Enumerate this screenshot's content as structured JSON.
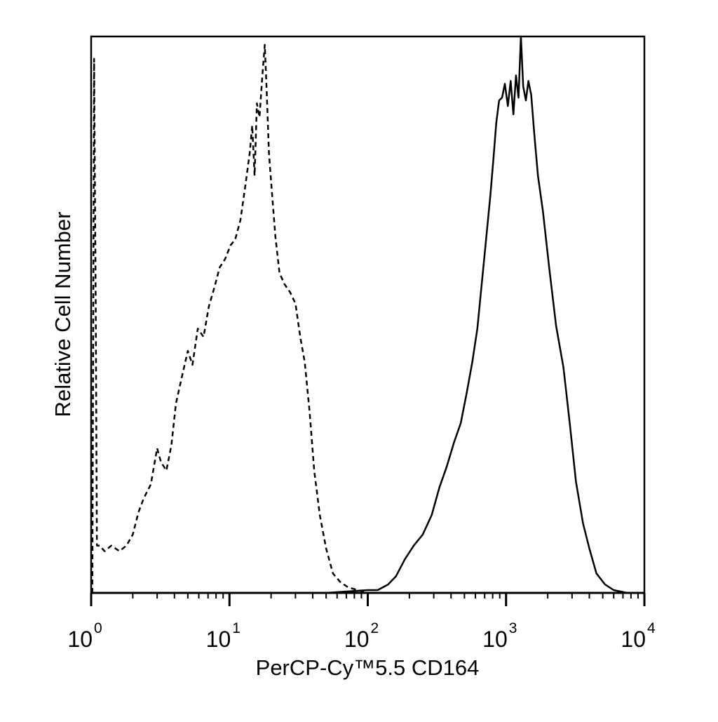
{
  "chart_data": {
    "type": "line",
    "title": "",
    "xlabel": "PerCP-Cy™5.5 CD164",
    "ylabel": "Relative Cell Number",
    "x_scale": "log",
    "xlim": [
      1,
      10000
    ],
    "ylim": [
      0,
      100
    ],
    "y_ticks_labeled": false,
    "grid": false,
    "legend": "none",
    "x_ticks": [
      {
        "value": 1,
        "base": "10",
        "exp": "0"
      },
      {
        "value": 10,
        "base": "10",
        "exp": "1"
      },
      {
        "value": 100,
        "base": "10",
        "exp": "2"
      },
      {
        "value": 1000,
        "base": "10",
        "exp": "3"
      },
      {
        "value": 10000,
        "base": "10",
        "exp": "4"
      }
    ],
    "series": [
      {
        "style": "dashed",
        "color": "#000000",
        "x": [
          1.02,
          1.05,
          1.08,
          1.1,
          1.15,
          1.25,
          1.4,
          1.6,
          1.8,
          2.0,
          2.2,
          2.4,
          2.7,
          3.0,
          3.2,
          3.5,
          3.8,
          4.1,
          4.5,
          5.0,
          5.4,
          5.9,
          6.5,
          7.1,
          7.8,
          8.5,
          9.3,
          10.2,
          11.0,
          12.0,
          13.0,
          14.0,
          14.6,
          15.2,
          15.8,
          16.5,
          17.3,
          18.0,
          18.6,
          19.3,
          20.2,
          21.5,
          23.0,
          25.0,
          27.5,
          30.0,
          32.5,
          35.0,
          38.0,
          41.0,
          45.0,
          50.0,
          56.0,
          63.0,
          72.0,
          85.0,
          100.0,
          150.0,
          300.0,
          1000.0,
          5000.0,
          10000.0
        ],
        "y": [
          0,
          96,
          50,
          8.5,
          8.5,
          7.5,
          8.5,
          7.5,
          8.5,
          10.5,
          14.5,
          17,
          19.5,
          26,
          23.5,
          22,
          26.5,
          34,
          38.5,
          43.5,
          41,
          47.5,
          46,
          51.5,
          55,
          58.5,
          60,
          62.5,
          63.5,
          67,
          73,
          79,
          84,
          75,
          88,
          85.5,
          93,
          98.5,
          90,
          79,
          72.5,
          64,
          57.5,
          55.5,
          54,
          52,
          46,
          41.5,
          32.5,
          22,
          14,
          8,
          3.5,
          2,
          1,
          0.5,
          0,
          0,
          0,
          0,
          0,
          0
        ]
      },
      {
        "style": "solid",
        "color": "#000000",
        "x": [
          1.0,
          50.0,
          100.0,
          118.0,
          140.0,
          160.0,
          185.0,
          215.0,
          250.0,
          290.0,
          330.0,
          370.0,
          420.0,
          470.0,
          520.0,
          570.0,
          620.0,
          670.0,
          720.0,
          770.0,
          810.0,
          850.0,
          890.0,
          935.0,
          980.0,
          1030.0,
          1080.0,
          1130.0,
          1180.0,
          1230.0,
          1280.0,
          1330.0,
          1390.0,
          1450.0,
          1520.0,
          1600.0,
          1700.0,
          1850.0,
          2050.0,
          2300.0,
          2600.0,
          2900.0,
          3200.0,
          3600.0,
          4000.0,
          4500.0,
          5200.0,
          6000.0,
          7500.0,
          10000.0
        ],
        "y": [
          0,
          0,
          0.5,
          0.5,
          1.5,
          3,
          6,
          8.5,
          10.5,
          14,
          19,
          22.5,
          27,
          30.5,
          36,
          41.5,
          47.5,
          56,
          64,
          71.5,
          78,
          84.5,
          88.5,
          89,
          91.5,
          87.5,
          92,
          86,
          93,
          89,
          100,
          91,
          88.5,
          92,
          89.5,
          82.5,
          75,
          68.5,
          58.5,
          48,
          40.5,
          30,
          20,
          12.5,
          8,
          3.5,
          1.5,
          0.5,
          0,
          0
        ]
      }
    ]
  }
}
